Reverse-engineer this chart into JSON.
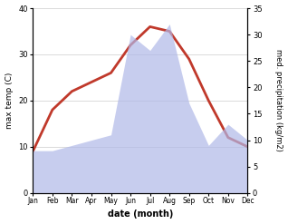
{
  "months": [
    "Jan",
    "Feb",
    "Mar",
    "Apr",
    "May",
    "Jun",
    "Jul",
    "Aug",
    "Sep",
    "Oct",
    "Nov",
    "Dec"
  ],
  "temperature": [
    9,
    18,
    22,
    24,
    26,
    32,
    36,
    35,
    29,
    20,
    12,
    10
  ],
  "precipitation": [
    8,
    8,
    9,
    10,
    11,
    30,
    27,
    32,
    17,
    9,
    13,
    10
  ],
  "temp_color": "#c0392b",
  "precip_color": "#b0b8e8",
  "xlabel": "date (month)",
  "ylabel_left": "max temp (C)",
  "ylabel_right": "med. precipitation (kg/m2)",
  "ylim_left": [
    0,
    40
  ],
  "ylim_right": [
    0,
    35
  ],
  "yticks_left": [
    0,
    10,
    20,
    30,
    40
  ],
  "yticks_right": [
    0,
    5,
    10,
    15,
    20,
    25,
    30,
    35
  ],
  "bg_color": "#ffffff",
  "line_width": 2.0
}
